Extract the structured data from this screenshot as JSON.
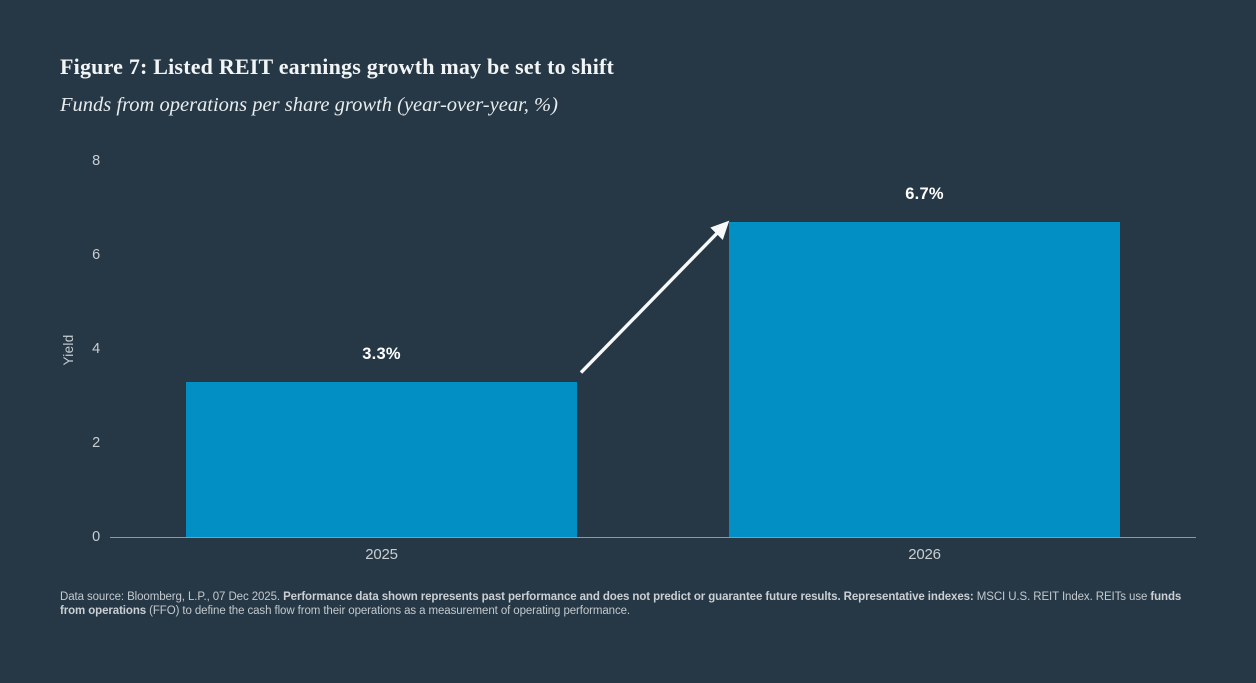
{
  "page": {
    "title": "Figure 7: Listed REIT earnings growth may be set to shift",
    "subtitle": "Funds from operations per share growth (year-over-year, %)"
  },
  "chart_data": {
    "type": "bar",
    "categories": [
      "2025",
      "2026"
    ],
    "values": [
      3.3,
      6.7
    ],
    "value_labels": [
      "3.3%",
      "6.7%"
    ],
    "title": "Figure 7: Listed REIT earnings growth may be set to shift",
    "subtitle": "Funds from operations per share growth (year-over-year, %)",
    "xlabel": "",
    "ylabel": "Yield",
    "yticks": [
      0,
      2,
      4,
      6,
      8
    ],
    "ylim": [
      0,
      8
    ],
    "grid": false,
    "legend": false,
    "annotations": [
      {
        "type": "arrow",
        "from": "top of 2025 bar",
        "to": "top of 2026 bar",
        "color": "#f7f9fa"
      }
    ]
  },
  "colors": {
    "background": "#263845",
    "bar": "#0290c4",
    "axis_line": "#8f979f",
    "tick_text": "#c9ced3",
    "value_label_text": "#ffffff",
    "footnote_text": "#c3c9cf",
    "arrow": "#f7f9fa"
  },
  "footnote": {
    "segments": [
      {
        "text": "Data source: Bloomberg, L.P., 07 Dec 2025. ",
        "bold": false
      },
      {
        "text": "Performance data shown represents past performance and does not predict or guarantee future results. Representative indexes: ",
        "bold": true
      },
      {
        "text": "MSCI U.S. REIT Index. REITs use ",
        "bold": false
      },
      {
        "text": "funds from operations ",
        "bold": true
      },
      {
        "text": "(FFO) to define the cash flow from their operations as a measurement of operating performance.",
        "bold": false
      }
    ]
  }
}
